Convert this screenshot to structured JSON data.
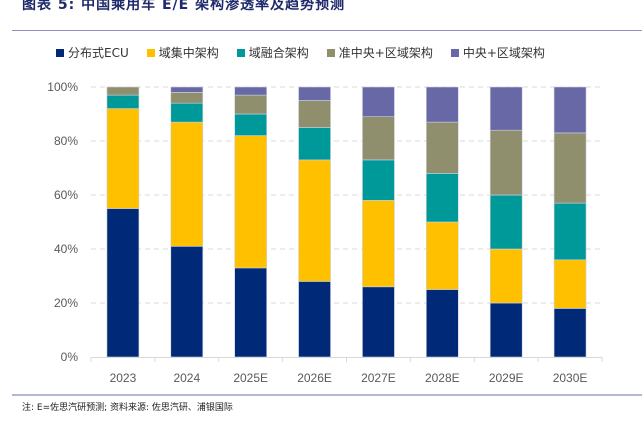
{
  "header": {
    "figure_label": "图表 5:",
    "title": "中国乘用车 E/E 架构渗透率及趋势预测"
  },
  "footer": {
    "note": "注: E=佐思汽研预测; 资料来源: 佐思汽研、浦银国际"
  },
  "chart_data": {
    "type": "bar",
    "stacked": true,
    "title": "中国乘用车 E/E 架构渗透率及趋势预测",
    "xlabel": "",
    "ylabel": "",
    "ylim": [
      0,
      100
    ],
    "yticks": [
      "0%",
      "20%",
      "40%",
      "60%",
      "80%",
      "100%"
    ],
    "grid": true,
    "legend_position": "top",
    "categories": [
      "2023",
      "2024",
      "2025E",
      "2026E",
      "2027E",
      "2028E",
      "2029E",
      "2030E"
    ],
    "series": [
      {
        "name": "分布式ECU",
        "color": "#002a78",
        "values": [
          55,
          41,
          33,
          28,
          26,
          25,
          20,
          18
        ]
      },
      {
        "name": "域集中架构",
        "color": "#ffc000",
        "values": [
          37,
          46,
          49,
          45,
          32,
          25,
          20,
          18
        ]
      },
      {
        "name": "域融合架构",
        "color": "#009999",
        "values": [
          5,
          7,
          8,
          12,
          15,
          18,
          20,
          21
        ]
      },
      {
        "name": "准中央+区域架构",
        "color": "#8f8f6e",
        "values": [
          3,
          4,
          7,
          10,
          16,
          19,
          24,
          26
        ]
      },
      {
        "name": "中央+区域架构",
        "color": "#6868a6",
        "values": [
          0,
          2,
          3,
          5,
          11,
          13,
          16,
          17
        ]
      }
    ]
  }
}
